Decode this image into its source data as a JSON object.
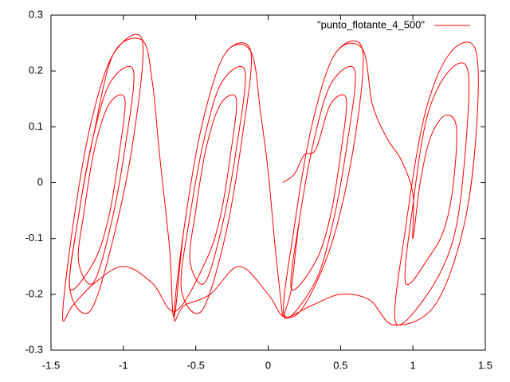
{
  "chart_data": {
    "type": "line",
    "xlim": [
      -1.5,
      1.5
    ],
    "xticks": [
      -1.5,
      -1,
      -0.5,
      0,
      0.5,
      1,
      1.5
    ],
    "ylim": [
      -0.3,
      0.3
    ],
    "yticks": [
      -0.3,
      -0.2,
      -0.1,
      0,
      0.1,
      0.2,
      0.3
    ],
    "grid": false,
    "legend": "top-right",
    "series": [
      {
        "name": "\"punto_flotante_4_500\"",
        "color": "#ff0000",
        "x": [
          0.1,
          0.18,
          0.25,
          0.33,
          0.43,
          0.54,
          0.5,
          0.43,
          0.33,
          0.16,
          0.22,
          0.32,
          0.44,
          0.6,
          0.54,
          0.44,
          0.32,
          0.11,
          0.18,
          0.3,
          0.46,
          0.65,
          0.72,
          0.82,
          0.92,
          1.0,
          1.0,
          1.05,
          1.12,
          1.22,
          1.3,
          1.28,
          1.22,
          1.12,
          0.95,
          1.0,
          1.1,
          1.25,
          1.38,
          1.36,
          1.28,
          1.1,
          0.88,
          0.95,
          1.08,
          1.25,
          1.43,
          1.44,
          1.35,
          1.15,
          0.87,
          0.7,
          0.5,
          0.3,
          0.12,
          0.16,
          0.22,
          0.32,
          0.44,
          0.6,
          0.54,
          0.44,
          0.32,
          0.11,
          0.18,
          0.3,
          0.46,
          0.65,
          0.6,
          0.45,
          0.25,
          0.11,
          0.0,
          -0.2,
          -0.4,
          -0.58,
          -0.65,
          -0.58,
          -0.46,
          -0.3,
          -0.12,
          -0.18,
          -0.3,
          -0.46,
          -0.6,
          -0.54,
          -0.44,
          -0.32,
          -0.16,
          -0.22,
          -0.32,
          -0.44,
          -0.54,
          -0.5,
          -0.43,
          -0.33,
          -0.22,
          -0.26,
          -0.33,
          -0.43,
          -0.64,
          -0.8,
          -1.0,
          -1.2,
          -1.35,
          -1.42,
          -1.35,
          -1.23,
          -1.07,
          -0.87,
          -0.93,
          -1.07,
          -1.23,
          -1.37,
          -1.31,
          -1.21,
          -1.09,
          -0.93,
          -0.99,
          -1.09,
          -1.21,
          -1.31,
          -1.27,
          -1.2,
          -1.1,
          -0.99,
          -1.03,
          -1.1,
          -1.2,
          -1.37,
          -1.31,
          -1.21,
          -1.07,
          -0.87,
          -0.8,
          -0.75,
          -0.68,
          -0.65,
          -0.58,
          -0.46,
          -0.3,
          -0.12,
          -0.05,
          0.0,
          0.05,
          0.1
        ],
        "values": [
          0,
          0.015,
          0.05,
          0.06,
          0.14,
          0.15,
          0.05,
          -0.06,
          -0.14,
          -0.19,
          -0.06,
          0.08,
          0.18,
          0.2,
          0.06,
          -0.08,
          -0.18,
          -0.24,
          -0.08,
          0.1,
          0.23,
          0.24,
          0.14,
          0.08,
          0.04,
          -0.02,
          -0.1,
          0.0,
          0.08,
          0.12,
          0.1,
          0.0,
          -0.08,
          -0.13,
          -0.18,
          -0.04,
          0.12,
          0.2,
          0.2,
          0.05,
          -0.1,
          -0.2,
          -0.25,
          -0.08,
          0.12,
          0.23,
          0.24,
          0.1,
          -0.08,
          -0.22,
          -0.255,
          -0.21,
          -0.2,
          -0.22,
          -0.24,
          -0.19,
          -0.06,
          0.08,
          0.18,
          0.2,
          0.06,
          -0.08,
          -0.18,
          -0.24,
          -0.08,
          0.1,
          0.23,
          0.24,
          0.08,
          -0.1,
          -0.22,
          -0.24,
          -0.2,
          -0.15,
          -0.2,
          -0.22,
          -0.24,
          -0.08,
          0.1,
          0.23,
          0.235,
          0.08,
          -0.1,
          -0.23,
          -0.19,
          -0.06,
          0.08,
          0.18,
          0.2,
          0.06,
          -0.08,
          -0.18,
          -0.14,
          -0.05,
          0.06,
          0.14,
          0.15,
          0.05,
          -0.06,
          -0.14,
          -0.23,
          -0.18,
          -0.15,
          -0.18,
          -0.22,
          -0.24,
          -0.08,
          0.1,
          0.23,
          0.255,
          0.08,
          -0.1,
          -0.23,
          -0.19,
          -0.06,
          0.08,
          0.18,
          0.2,
          0.06,
          -0.08,
          -0.18,
          -0.14,
          -0.05,
          0.06,
          0.14,
          0.15,
          0.05,
          -0.06,
          -0.14,
          -0.19,
          -0.06,
          0.08,
          0.23,
          0.255,
          0.18,
          0.05,
          -0.12,
          -0.24,
          -0.08,
          0.1,
          0.23,
          0.235,
          0.12,
          0.02,
          -0.12,
          -0.24
        ]
      }
    ]
  }
}
